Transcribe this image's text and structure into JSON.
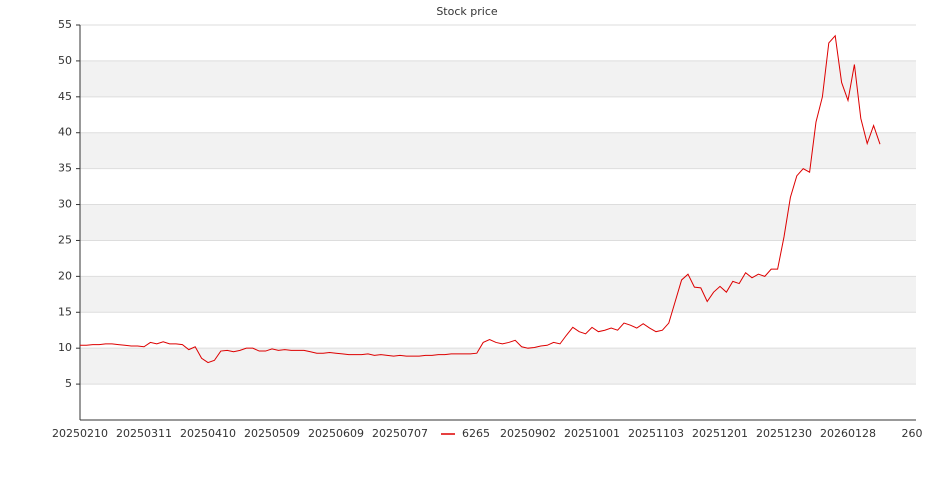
{
  "chart_data": {
    "type": "line",
    "title": "Stock price",
    "categories": [
      "20250210",
      null,
      null,
      null,
      null,
      null,
      null,
      null,
      null,
      null,
      "20250311",
      null,
      null,
      null,
      null,
      null,
      null,
      null,
      null,
      null,
      "20250410",
      null,
      null,
      null,
      null,
      null,
      null,
      null,
      null,
      null,
      "20250509",
      null,
      null,
      null,
      null,
      null,
      null,
      null,
      null,
      null,
      "20250609",
      null,
      null,
      null,
      null,
      null,
      null,
      null,
      null,
      null,
      "20250707",
      null,
      null,
      null,
      null,
      null,
      null,
      null,
      null,
      null,
      null,
      null,
      null,
      null,
      null,
      null,
      null,
      null,
      null,
      null,
      "20250902",
      null,
      null,
      null,
      null,
      null,
      null,
      null,
      null,
      null,
      "20251001",
      null,
      null,
      null,
      null,
      null,
      null,
      null,
      null,
      null,
      "20251103",
      null,
      null,
      null,
      null,
      null,
      null,
      null,
      null,
      null,
      "20251201",
      null,
      null,
      null,
      null,
      null,
      null,
      null,
      null,
      null,
      "20251230",
      null,
      null,
      null,
      null,
      null,
      null,
      null,
      null,
      null,
      "20260128",
      null,
      null,
      null,
      null,
      null,
      null,
      null,
      null,
      null,
      "260"
    ],
    "series": [
      {
        "name": "6265",
        "color": "#dd0000",
        "values": [
          10.4,
          10.4,
          10.5,
          10.5,
          10.6,
          10.6,
          10.5,
          10.4,
          10.3,
          10.3,
          10.2,
          10.8,
          10.6,
          10.9,
          10.6,
          10.6,
          10.5,
          9.8,
          10.2,
          8.6,
          8.0,
          8.3,
          9.6,
          9.7,
          9.5,
          9.7,
          10.0,
          10.0,
          9.6,
          9.6,
          9.9,
          9.7,
          9.8,
          9.7,
          9.7,
          9.7,
          9.5,
          9.3,
          9.3,
          9.4,
          9.3,
          9.2,
          9.1,
          9.1,
          9.1,
          9.2,
          9.0,
          9.1,
          9.0,
          8.9,
          9.0,
          8.9,
          8.9,
          8.9,
          9.0,
          9.0,
          9.1,
          9.1,
          9.2,
          9.2,
          9.2,
          9.2,
          9.3,
          10.8,
          11.2,
          10.8,
          10.6,
          10.8,
          11.1,
          10.2,
          10.0,
          10.1,
          10.3,
          10.4,
          10.8,
          10.6,
          11.8,
          12.9,
          12.3,
          12.0,
          12.9,
          12.3,
          12.5,
          12.8,
          12.5,
          13.5,
          13.2,
          12.8,
          13.4,
          12.8,
          12.3,
          12.5,
          13.5,
          16.5,
          19.5,
          20.3,
          18.5,
          18.4,
          16.5,
          17.8,
          18.6,
          17.8,
          19.3,
          19.0,
          20.5,
          19.8,
          20.3,
          20.0,
          21.0,
          21.0,
          25.5,
          31.0,
          34.0,
          35.0,
          34.5,
          41.5,
          45.0,
          52.5,
          53.5,
          47.0,
          44.5,
          49.5,
          42.0,
          38.5,
          41.0,
          38.4,
          null,
          null,
          null,
          null,
          null
        ]
      }
    ],
    "ylim": [
      0,
      55
    ],
    "yticks": [
      5,
      10,
      15,
      20,
      25,
      30,
      35,
      40,
      45,
      50,
      55
    ],
    "grid": true
  }
}
